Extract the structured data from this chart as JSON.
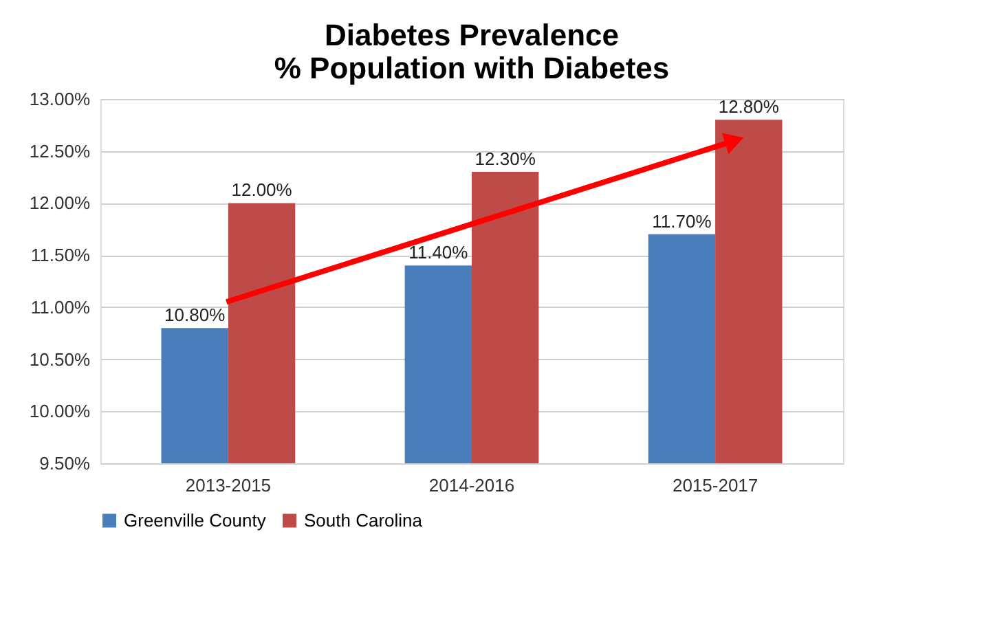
{
  "chart_data": {
    "type": "bar",
    "title": "Diabetes Prevalence\n% Population with Diabetes",
    "categories": [
      "2013-2015",
      "2014-2016",
      "2015-2017"
    ],
    "series": [
      {
        "name": "Greenville County",
        "color": "#4a7ebb",
        "values": [
          10.8,
          11.4,
          11.7
        ],
        "value_labels": [
          "10.80%",
          "11.40%",
          "11.70%"
        ]
      },
      {
        "name": "South Carolina",
        "color": "#be4b48",
        "values": [
          12.0,
          12.3,
          12.8
        ],
        "value_labels": [
          "12.00%",
          "12.30%",
          "12.80%"
        ]
      }
    ],
    "ylim": [
      9.5,
      13.0
    ],
    "yticks": [
      {
        "value": 9.5,
        "label": "9.50%"
      },
      {
        "value": 10.0,
        "label": "10.00%"
      },
      {
        "value": 10.5,
        "label": "10.50%"
      },
      {
        "value": 11.0,
        "label": "11.00%"
      },
      {
        "value": 11.5,
        "label": "11.50%"
      },
      {
        "value": 12.0,
        "label": "12.00%"
      },
      {
        "value": 12.5,
        "label": "12.50%"
      },
      {
        "value": 13.0,
        "label": "13.00%"
      }
    ],
    "grid": "y",
    "legend": "bottom"
  }
}
